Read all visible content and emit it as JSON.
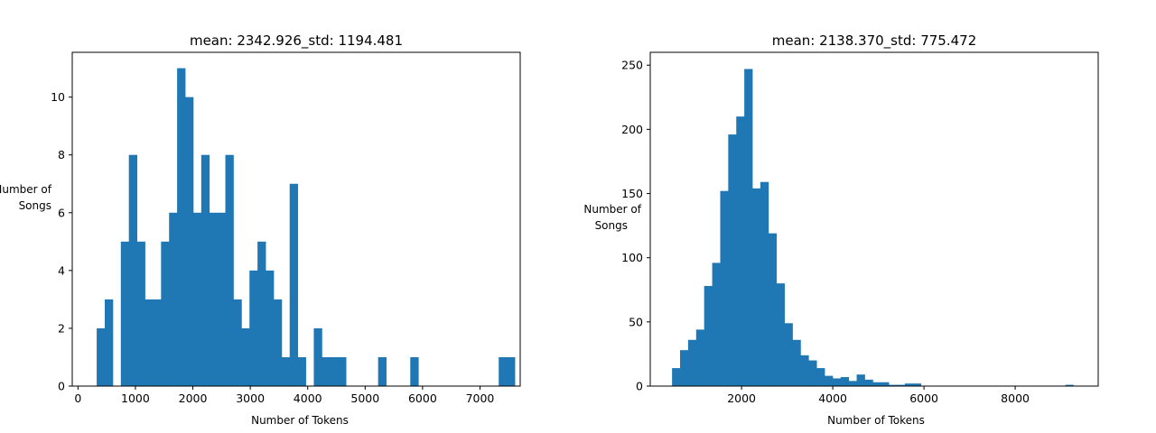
{
  "chart_data": [
    {
      "type": "histogram",
      "title": "mean: 2342.926_std: 1194.481",
      "xlabel": "Number of Tokens",
      "ylabel_lines": [
        "Number of",
        "Songs"
      ],
      "xlim": [
        -100,
        7700
      ],
      "ylim": [
        0,
        11.55
      ],
      "xticks": [
        0,
        1000,
        2000,
        3000,
        4000,
        5000,
        6000,
        7000
      ],
      "yticks": [
        0,
        2,
        4,
        6,
        8,
        10
      ],
      "color": "#1f77b4",
      "bin_start": 326,
      "bin_width": 140,
      "counts": [
        2,
        3,
        0,
        5,
        8,
        5,
        3,
        3,
        5,
        6,
        11,
        10,
        6,
        8,
        6,
        6,
        8,
        3,
        2,
        4,
        5,
        4,
        3,
        1,
        7,
        1,
        0,
        2,
        1,
        1,
        1,
        0,
        0,
        0,
        0,
        1,
        0,
        0,
        0,
        1,
        0,
        0,
        0,
        0,
        0,
        0,
        0,
        0,
        0,
        0,
        1,
        1
      ]
    },
    {
      "type": "histogram",
      "title": "mean: 2138.370_std: 775.472",
      "xlabel": "Number of Tokens",
      "ylabel_lines": [
        "Number of",
        "Songs"
      ],
      "xlim": [
        -2,
        9820
      ],
      "ylim": [
        0,
        260
      ],
      "xticks": [
        2000,
        4000,
        6000,
        8000
      ],
      "yticks": [
        0,
        50,
        100,
        150,
        200,
        250
      ],
      "color": "#1f77b4",
      "bin_start": 476,
      "bin_width": 176,
      "counts": [
        14,
        28,
        36,
        44,
        78,
        96,
        152,
        196,
        210,
        247,
        154,
        159,
        119,
        80,
        49,
        36,
        24,
        20,
        14,
        8,
        6,
        7,
        4,
        9,
        5,
        3,
        3,
        1,
        1,
        2,
        2,
        0,
        0,
        0,
        0,
        0,
        0,
        0,
        0,
        0,
        0,
        0,
        0,
        0,
        0,
        0,
        0,
        0,
        0,
        1
      ]
    }
  ]
}
